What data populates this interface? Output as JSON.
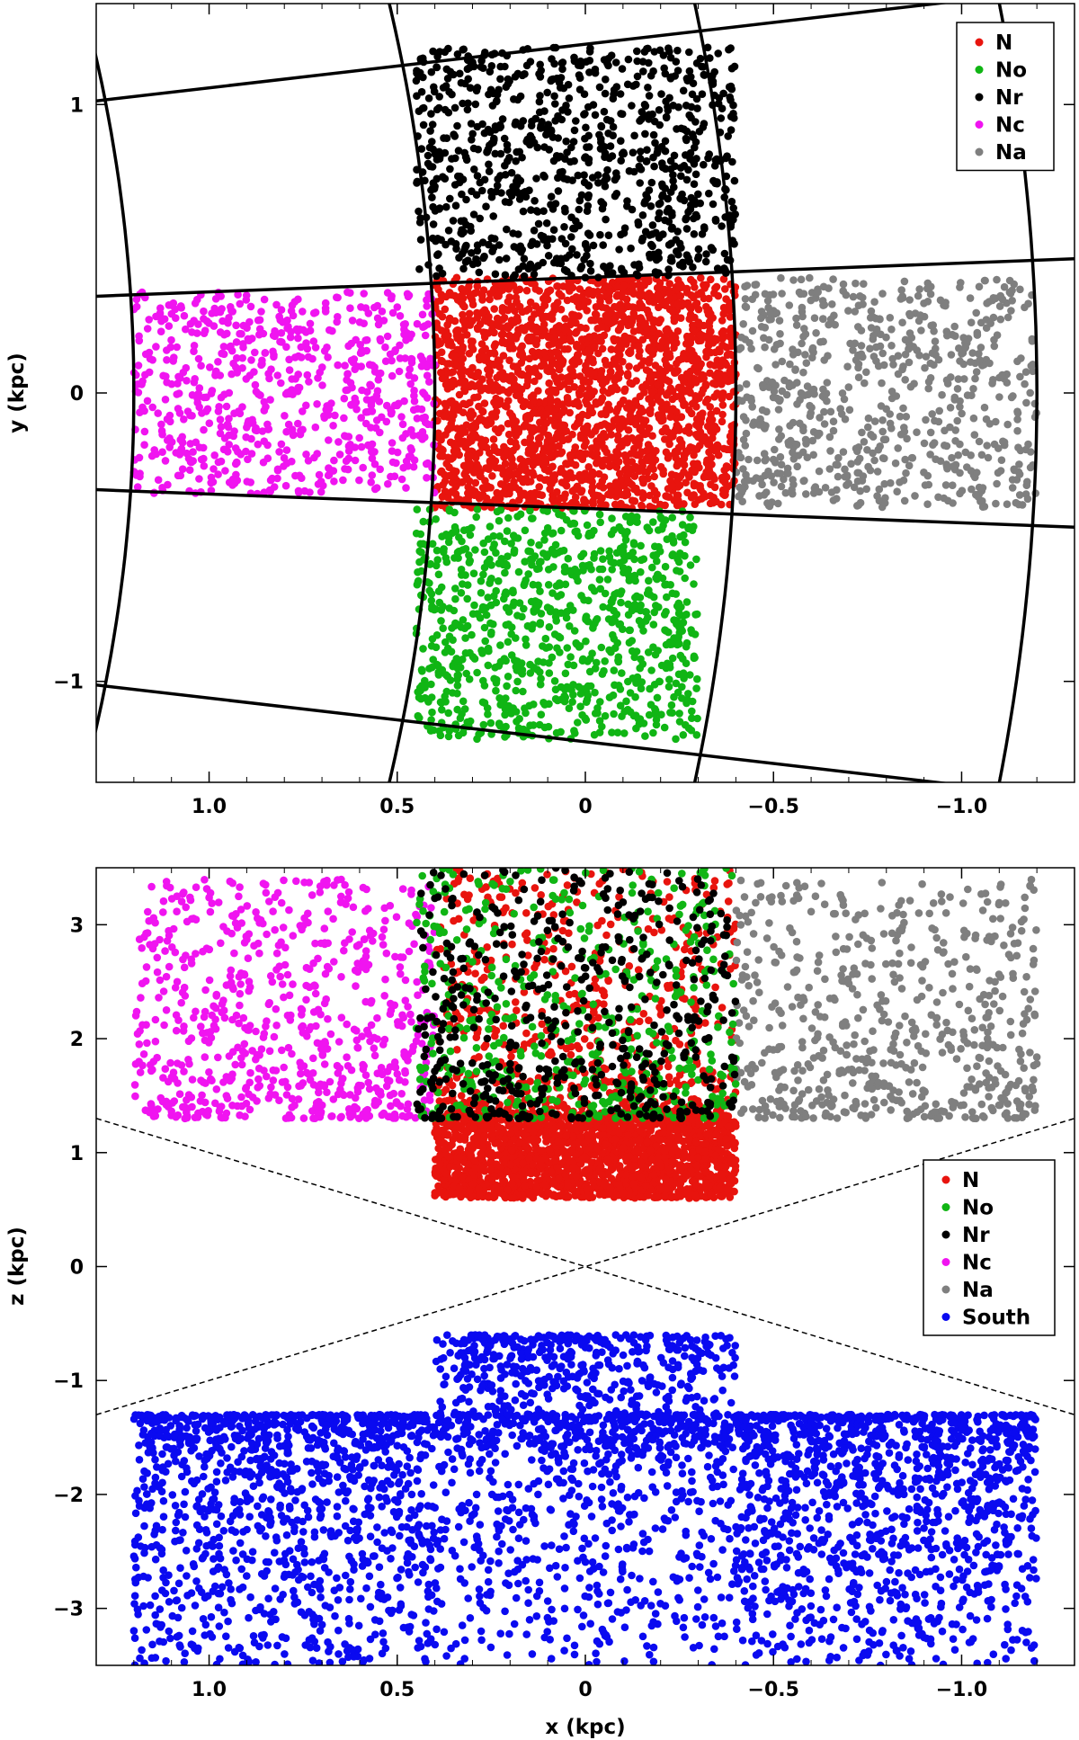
{
  "chart_data": [
    {
      "type": "scatter",
      "title": "",
      "xlabel": "",
      "ylabel": "y (kpc)",
      "xlim": [
        1.3,
        -1.3
      ],
      "ylim": [
        -1.35,
        1.35
      ],
      "x_ticks": [
        "1.0",
        "0.5",
        "0",
        "−0.5",
        "−1.0"
      ],
      "x_tick_values": [
        1.0,
        0.5,
        0,
        -0.5,
        -1.0
      ],
      "y_ticks": [
        "−1",
        "0",
        "1"
      ],
      "y_tick_values": [
        -1,
        0,
        1
      ],
      "grid": false,
      "legend_position": "top-right",
      "boundary_grid": "curved galactic cells",
      "series": [
        {
          "name": "N",
          "color": "#e8140e",
          "x_range": [
            -0.4,
            0.4
          ],
          "y_range": [
            -0.4,
            0.4
          ],
          "count": 2200
        },
        {
          "name": "No",
          "color": "#10b514",
          "x_range": [
            -0.3,
            0.45
          ],
          "y_range": [
            -1.2,
            -0.4
          ],
          "count": 900
        },
        {
          "name": "Nr",
          "color": "#000000",
          "x_range": [
            -0.4,
            0.45
          ],
          "y_range": [
            0.4,
            1.2
          ],
          "count": 900
        },
        {
          "name": "Nc",
          "color": "#f014f0",
          "x_range": [
            0.4,
            1.2
          ],
          "y_range": [
            -0.35,
            0.35
          ],
          "count": 700
        },
        {
          "name": "Na",
          "color": "#7f7f7f",
          "x_range": [
            -1.2,
            -0.4
          ],
          "y_range": [
            -0.4,
            0.4
          ],
          "count": 700
        }
      ]
    },
    {
      "type": "scatter",
      "title": "",
      "xlabel": "x (kpc)",
      "ylabel": "z (kpc)",
      "xlim": [
        1.3,
        -1.3
      ],
      "ylim": [
        -3.5,
        3.5
      ],
      "x_ticks": [
        "1.0",
        "0.5",
        "0",
        "−0.5",
        "−1.0"
      ],
      "x_tick_values": [
        1.0,
        0.5,
        0,
        -0.5,
        -1.0
      ],
      "y_ticks": [
        "−3",
        "−2",
        "−1",
        "0",
        "1",
        "2",
        "3"
      ],
      "y_tick_values": [
        -3,
        -2,
        -1,
        0,
        1,
        2,
        3
      ],
      "grid": false,
      "legend_position": "middle-right",
      "dashed_lines": [
        {
          "from": [
            1.3,
            1.3
          ],
          "to": [
            -1.3,
            -1.3
          ]
        },
        {
          "from": [
            1.3,
            -1.3
          ],
          "to": [
            -1.3,
            1.3
          ]
        }
      ],
      "series": [
        {
          "name": "N",
          "color": "#e8140e",
          "x_range": [
            -0.4,
            0.4
          ],
          "z_range": [
            0.6,
            3.5
          ],
          "count": 2600
        },
        {
          "name": "No",
          "color": "#10b514",
          "x_range": [
            -0.4,
            0.45
          ],
          "z_range": [
            1.3,
            3.5
          ],
          "count": 500
        },
        {
          "name": "Nr",
          "color": "#000000",
          "x_range": [
            -0.4,
            0.45
          ],
          "z_range": [
            1.3,
            3.5
          ],
          "count": 500
        },
        {
          "name": "Nc",
          "color": "#f014f0",
          "x_range": [
            0.4,
            1.2
          ],
          "z_range": [
            1.3,
            3.4
          ],
          "count": 700
        },
        {
          "name": "Na",
          "color": "#7f7f7f",
          "x_range": [
            -1.2,
            -0.4
          ],
          "z_range": [
            1.3,
            3.4
          ],
          "count": 600
        },
        {
          "name": "South",
          "color": "#0a0af0",
          "x_range": [
            -1.2,
            1.2
          ],
          "z_range": [
            -3.5,
            -0.6
          ],
          "count": 3600
        }
      ]
    }
  ]
}
